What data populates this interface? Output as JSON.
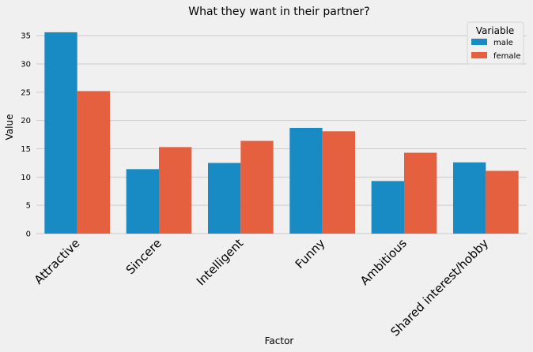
{
  "chart_data": {
    "type": "bar",
    "title": "What they want in their partner?",
    "xlabel": "Factor",
    "ylabel": "Value",
    "categories": [
      "Attractive",
      "Sincere",
      "Intelligent",
      "Funny",
      "Ambitious",
      "Shared interest/hobby"
    ],
    "series": [
      {
        "name": "male",
        "values": [
          35.6,
          11.4,
          12.5,
          18.7,
          9.3,
          12.6
        ],
        "color": "#188bc4"
      },
      {
        "name": "female",
        "values": [
          25.2,
          15.3,
          16.4,
          18.1,
          14.3,
          11.1
        ],
        "color": "#e5603f"
      }
    ],
    "ylim": [
      0,
      37.4
    ],
    "yticks": [
      "0",
      "5",
      "10",
      "15",
      "20",
      "25",
      "30",
      "35"
    ],
    "legend": {
      "title": "Variable",
      "placement": "top-right"
    },
    "grid": true,
    "background": "#f0f0f0",
    "gridColor": "#cbcbcb"
  }
}
